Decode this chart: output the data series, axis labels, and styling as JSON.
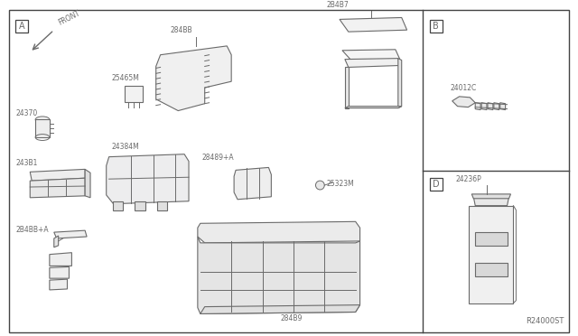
{
  "bg_color": "#ffffff",
  "line_color": "#6a6a6a",
  "text_color": "#6a6a6a",
  "border_color": "#444444",
  "fig_width": 6.4,
  "fig_height": 3.72,
  "dpi": 100,
  "vdivide": 0.735,
  "hdivide": 0.5,
  "ref_label": "R24000ST",
  "sections": {
    "A": [
      0.018,
      0.948
    ],
    "B": [
      0.748,
      0.948
    ],
    "D": [
      0.748,
      0.468
    ]
  }
}
